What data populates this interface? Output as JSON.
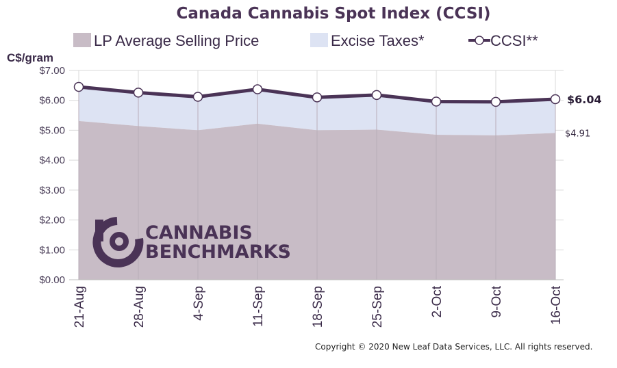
{
  "chart_data": {
    "type": "area",
    "title": "Canada Cannabis Spot Index (CCSI)",
    "ylabel": "C$/gram",
    "ylim": [
      0,
      7
    ],
    "yticks": [
      "$0.00",
      "$1.00",
      "$2.00",
      "$3.00",
      "$4.00",
      "$5.00",
      "$6.00",
      "$7.00"
    ],
    "categories": [
      "21-Aug",
      "28-Aug",
      "4-Sep",
      "11-Sep",
      "18-Sep",
      "25-Sep",
      "2-Oct",
      "9-Oct",
      "16-Oct"
    ],
    "series": [
      {
        "name": "LP Average Selling Price",
        "kind": "area",
        "color": "#c8bcc6",
        "values": [
          5.31,
          5.14,
          5.0,
          5.22,
          5.0,
          5.02,
          4.85,
          4.83,
          4.91
        ]
      },
      {
        "name": "Excise Taxes*",
        "kind": "stacked-area",
        "color": "#dde3f3",
        "values": [
          1.14,
          1.12,
          1.12,
          1.15,
          1.1,
          1.16,
          1.11,
          1.12,
          1.13
        ]
      },
      {
        "name": "CCSI**",
        "kind": "line",
        "color": "#4a3356",
        "values": [
          6.45,
          6.26,
          6.12,
          6.37,
          6.1,
          6.18,
          5.96,
          5.95,
          6.04
        ]
      }
    ],
    "end_labels": {
      "ccsi": "$6.04",
      "lp": "$4.91"
    },
    "legend_position": "top",
    "grid": true
  },
  "logo": {
    "line1": "CANNABIS",
    "line2": "BENCHMARKS",
    "mark": "®"
  },
  "copyright": "Copyright © 2020 New Leaf Data Services, LLC. All rights reserved.",
  "colors": {
    "brand": "#4a3356",
    "lp_area": "#c8bcc6",
    "tax_area": "#dde3f3"
  }
}
